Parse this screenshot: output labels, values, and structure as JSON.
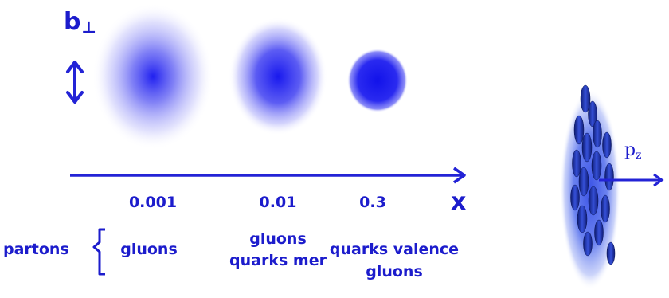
{
  "axis": {
    "b_label": "b",
    "b_subscript": "⊥",
    "x_label": "x",
    "ticks": [
      "0.001",
      "0.01",
      "0.3"
    ]
  },
  "partons_label": "partons",
  "columns": [
    {
      "lines": [
        "gluons"
      ]
    },
    {
      "lines": [
        "gluons",
        "quarks mer"
      ]
    },
    {
      "lines": [
        "quarks valence",
        "gluons"
      ]
    }
  ],
  "momentum": {
    "label": "p",
    "subscript": "z"
  },
  "colors": {
    "text": "#1c1ccc",
    "arrow": "#2323d6",
    "blob_core": "#2a2af0",
    "proton_halo": "#5a6ff0",
    "parton": "#1f2fae"
  }
}
